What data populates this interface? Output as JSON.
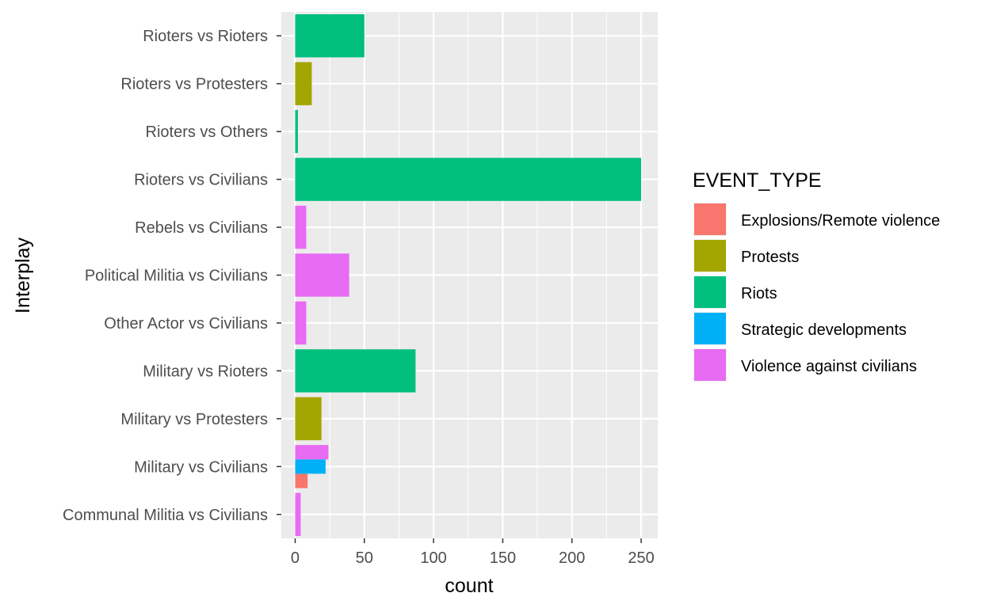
{
  "chart_data": {
    "type": "bar",
    "orientation": "horizontal",
    "xlabel": "count",
    "ylabel": "Interplay",
    "xlim": [
      -10,
      262
    ],
    "xticks": [
      0,
      50,
      100,
      150,
      200,
      250
    ],
    "grid": true,
    "categories": [
      "Rioters vs Rioters",
      "Rioters vs Protesters",
      "Rioters vs Others",
      "Rioters vs Civilians",
      "Rebels vs Civilians",
      "Political Militia vs Civilians",
      "Other Actor vs Civilians",
      "Military vs Rioters",
      "Military vs Protesters",
      "Military vs Civilians",
      "Communal Militia vs Civilians"
    ],
    "legend": {
      "title": "EVENT_TYPE",
      "placement": "right",
      "items": [
        {
          "label": "Explosions/Remote violence",
          "color": "#F8766D"
        },
        {
          "label": "Protests",
          "color": "#A3A500"
        },
        {
          "label": "Riots",
          "color": "#00BF7D"
        },
        {
          "label": "Strategic developments",
          "color": "#00B0F6"
        },
        {
          "label": "Violence against civilians",
          "color": "#E76BF3"
        }
      ]
    },
    "bars": [
      {
        "category": "Rioters vs Rioters",
        "event_type": "Riots",
        "value": 50
      },
      {
        "category": "Rioters vs Protesters",
        "event_type": "Protests",
        "value": 12
      },
      {
        "category": "Rioters vs Others",
        "event_type": "Riots",
        "value": 2
      },
      {
        "category": "Rioters vs Civilians",
        "event_type": "Riots",
        "value": 250
      },
      {
        "category": "Rebels vs Civilians",
        "event_type": "Violence against civilians",
        "value": 8
      },
      {
        "category": "Political Militia vs Civilians",
        "event_type": "Violence against civilians",
        "value": 39
      },
      {
        "category": "Other Actor vs Civilians",
        "event_type": "Violence against civilians",
        "value": 8
      },
      {
        "category": "Military vs Rioters",
        "event_type": "Riots",
        "value": 87
      },
      {
        "category": "Military vs Protesters",
        "event_type": "Protests",
        "value": 19
      },
      {
        "category": "Military vs Civilians",
        "event_type": "Explosions/Remote violence",
        "value": 9
      },
      {
        "category": "Military vs Civilians",
        "event_type": "Strategic developments",
        "value": 22
      },
      {
        "category": "Military vs Civilians",
        "event_type": "Violence against civilians",
        "value": 24
      },
      {
        "category": "Communal Militia vs Civilians",
        "event_type": "Violence against civilians",
        "value": 4
      }
    ]
  }
}
